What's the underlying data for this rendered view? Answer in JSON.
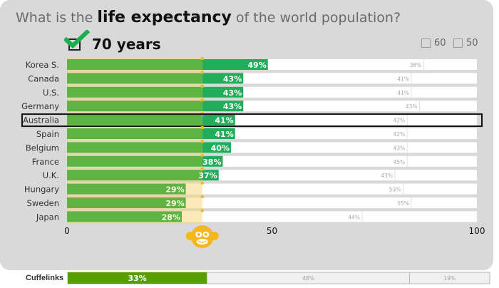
{
  "header": {
    "title_prefix": "What is the ",
    "title_bold": "life expectancy",
    "title_suffix": " of the world population?"
  },
  "answer": {
    "checked": true,
    "label": "70 years",
    "check_icon": "check-icon"
  },
  "options": [
    {
      "label": "60",
      "checked": false
    },
    {
      "label": "50",
      "checked": false
    }
  ],
  "colors": {
    "correct_below_monkey": "#5db443",
    "correct_above_monkey": "#22ad5a",
    "monkey_gap": "#fbeab8",
    "monkey": "#f5b81a",
    "panel": "#d9d9d9",
    "cuffelinks_correct": "#55a000"
  },
  "chart_data": {
    "type": "bar",
    "orientation": "horizontal",
    "stacked": true,
    "title": "What is the life expectancy of the world population?",
    "xlabel": "",
    "ylabel": "",
    "xlim": [
      0,
      100
    ],
    "xticks": [
      0,
      50,
      100
    ],
    "grid": false,
    "highlighted_category": "Australia",
    "reference_line": {
      "name": "monkey (random guess)",
      "value": 33
    },
    "categories": [
      "Korea S.",
      "Canada",
      "U.S.",
      "Germany",
      "Australia",
      "Spain",
      "Belgium",
      "France",
      "U.K.",
      "Hungary",
      "Sweden",
      "Japan"
    ],
    "series": [
      {
        "name": "Correct (70 years)",
        "values": [
          49,
          43,
          43,
          43,
          41,
          41,
          40,
          38,
          37,
          29,
          29,
          28
        ]
      },
      {
        "name": "60 years",
        "values": [
          38,
          41,
          41,
          43,
          42,
          42,
          43,
          45,
          43,
          53,
          55,
          44
        ]
      }
    ],
    "summary": {
      "label": "Cuffelinks",
      "values": [
        33,
        48,
        19
      ]
    }
  }
}
